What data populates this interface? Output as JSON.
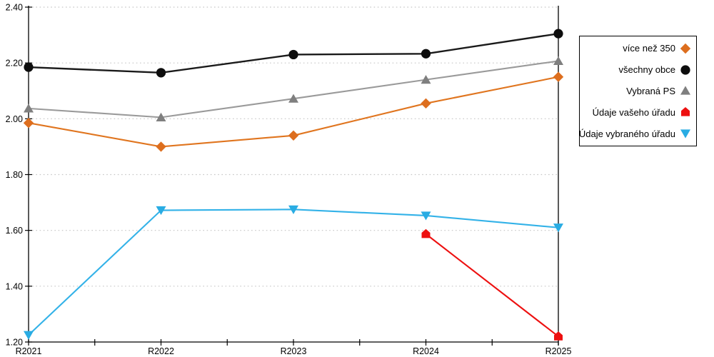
{
  "chart_data": {
    "type": "line",
    "title": "",
    "xlabel": "",
    "ylabel": "",
    "categories": [
      "R2021",
      "R2022",
      "R2023",
      "R2024",
      "R2025"
    ],
    "ylim": [
      1.2,
      2.4
    ],
    "y_ticks": [
      2.4,
      2.2,
      2.0,
      1.8,
      1.6,
      1.4,
      1.2
    ],
    "grid": "horizontal-dotted",
    "legend_position": "right",
    "last_category_vertical_line": "R2025",
    "series": [
      {
        "name": "více než 350",
        "marker": "diamond",
        "color": "#DD6E1E",
        "line_color": "#E0751F",
        "values": [
          1.985,
          1.9,
          1.94,
          2.055,
          2.15
        ]
      },
      {
        "name": "všechny obce",
        "marker": "circle",
        "color": "#0D0D0D",
        "line_color": "#1A1A1A",
        "values": [
          2.185,
          2.165,
          2.23,
          2.233,
          2.305
        ]
      },
      {
        "name": "Vybraná PS",
        "marker": "triangle-up",
        "color": "#7F7F7F",
        "line_color": "#9A9A9A",
        "values": [
          2.037,
          2.005,
          2.072,
          2.14,
          2.207
        ]
      },
      {
        "name": "Údaje vašeho úřadu",
        "marker": "pentagon",
        "color": "#ED1010",
        "line_color": "#ED1010",
        "values": [
          null,
          null,
          null,
          1.587,
          1.22
        ]
      },
      {
        "name": "Údaje vybraného úřadu",
        "marker": "triangle-down",
        "color": "#29ACE3",
        "line_color": "#33B2E8",
        "values": [
          1.225,
          1.672,
          1.675,
          1.653,
          1.61
        ]
      }
    ],
    "colors": {
      "axis": "#000000",
      "gridline": "#c6c6c6",
      "tick_label": "#000000",
      "background": "#ffffff"
    }
  }
}
